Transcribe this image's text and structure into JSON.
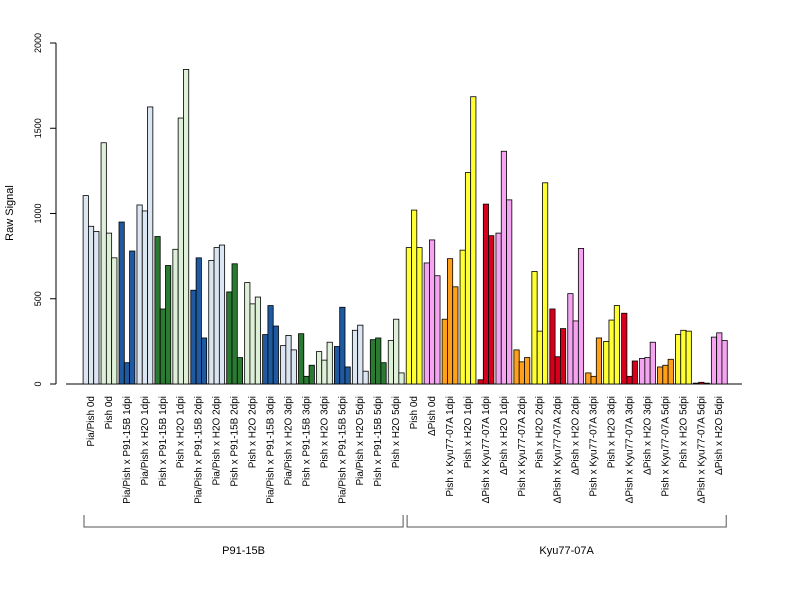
{
  "chart_data": {
    "type": "bar",
    "ylabel": "Raw Signal",
    "ylim": [
      0,
      2000
    ],
    "yticks": [
      0,
      500,
      1000,
      1500,
      2000
    ],
    "grid": false,
    "categories": [
      "Pia/Pish 0d",
      "Pish 0d",
      "Pia/Pish x P91-15B 1dpi",
      "Pia/Pish x H2O 1dpi",
      "Pish x P91-15B 1dpi",
      "Pish x H2O 1dpi",
      "Pia/Pish x P91-15B 2dpi",
      "Pia/Pish x H2O 2dpi",
      "Pish x P91-15B 2dpi",
      "Pish x H2O 2dpi",
      "Pia/Pish x P91-15B 3dpi",
      "Pia/Pish x H2O 3dpi",
      "Pish x P91-15B 3dpi",
      "Pish x H2O 3dpi",
      "Pia/Pish x P91-15B 5dpi",
      "Pia/Pish x H2O 5dpi",
      "Pish x P91-15B 5dpi",
      "Pish x H2O 5dpi",
      "Pish 0d",
      "ΔPish 0d",
      "Pish x Kyu77-07A 1dpi",
      "Pish x H2O 1dpi",
      "ΔPish x Kyu77-07A 1dpi",
      "ΔPish x H2O 1dpi",
      "Pish x Kyu77-07A 2dpi",
      "Pish x H2O 2dpi",
      "ΔPish x Kyu77-07A 2dpi",
      "ΔPish x H2O 2dpi",
      "Pish x Kyu77-07A 3dpi",
      "Pish x H2O 3dpi",
      "ΔPish x Kyu77-07A 3dpi",
      "ΔPish x H2O 3dpi",
      "Pish x Kyu77-07A 5dpi",
      "Pish x H2O 5dpi",
      "ΔPish x Kyu77-07A 5dpi",
      "ΔPish x H2O 5dpi"
    ],
    "colors": [
      "#dce6f2",
      "#dff0d8",
      "#1f5aa0",
      "#dce6f2",
      "#2a7a32",
      "#dff0d8",
      "#1f5aa0",
      "#dce6f2",
      "#2a7a32",
      "#dff0d8",
      "#1f5aa0",
      "#dce6f2",
      "#2a7a32",
      "#dff0d8",
      "#1f5aa0",
      "#dce6f2",
      "#2a7a32",
      "#dff0d8",
      "#ffff33",
      "#f4a4f0",
      "#ff9f1a",
      "#ffff33",
      "#d7001c",
      "#f4a4f0",
      "#ff9f1a",
      "#ffff33",
      "#d7001c",
      "#f4a4f0",
      "#ff9f1a",
      "#ffff33",
      "#d7001c",
      "#f4a4f0",
      "#ff9f1a",
      "#ffff33",
      "#d7001c",
      "#f4a4f0"
    ],
    "values": [
      [
        1105,
        925,
        895
      ],
      [
        1415,
        885,
        740
      ],
      [
        950,
        125,
        780
      ],
      [
        1050,
        1015,
        1625
      ],
      [
        865,
        440,
        695
      ],
      [
        790,
        1560,
        1845
      ],
      [
        550,
        740,
        270
      ],
      [
        725,
        800,
        815
      ],
      [
        540,
        705,
        155
      ],
      [
        595,
        470,
        510
      ],
      [
        290,
        460,
        340
      ],
      [
        225,
        285,
        200
      ],
      [
        295,
        45,
        110
      ],
      [
        190,
        140,
        245
      ],
      [
        220,
        450,
        100
      ],
      [
        315,
        345,
        75
      ],
      [
        260,
        270,
        125
      ],
      [
        255,
        380,
        65
      ],
      [
        800,
        1020,
        800
      ],
      [
        710,
        845,
        635
      ],
      [
        380,
        735,
        570
      ],
      [
        785,
        1240,
        1685
      ],
      [
        25,
        1055,
        870
      ],
      [
        885,
        1365,
        1080
      ],
      [
        200,
        130,
        155
      ],
      [
        660,
        310,
        1180
      ],
      [
        440,
        160,
        325
      ],
      [
        530,
        370,
        795
      ],
      [
        65,
        45,
        270
      ],
      [
        250,
        375,
        460
      ],
      [
        415,
        45,
        135
      ],
      [
        150,
        155,
        245
      ],
      [
        100,
        110,
        145
      ],
      [
        290,
        315,
        310
      ],
      [
        5,
        10,
        5
      ],
      [
        275,
        300,
        255
      ]
    ],
    "groups": [
      {
        "label": "P91-15B",
        "from": 0,
        "to": 17
      },
      {
        "label": "Kyu77-07A",
        "from": 18,
        "to": 35
      }
    ]
  }
}
